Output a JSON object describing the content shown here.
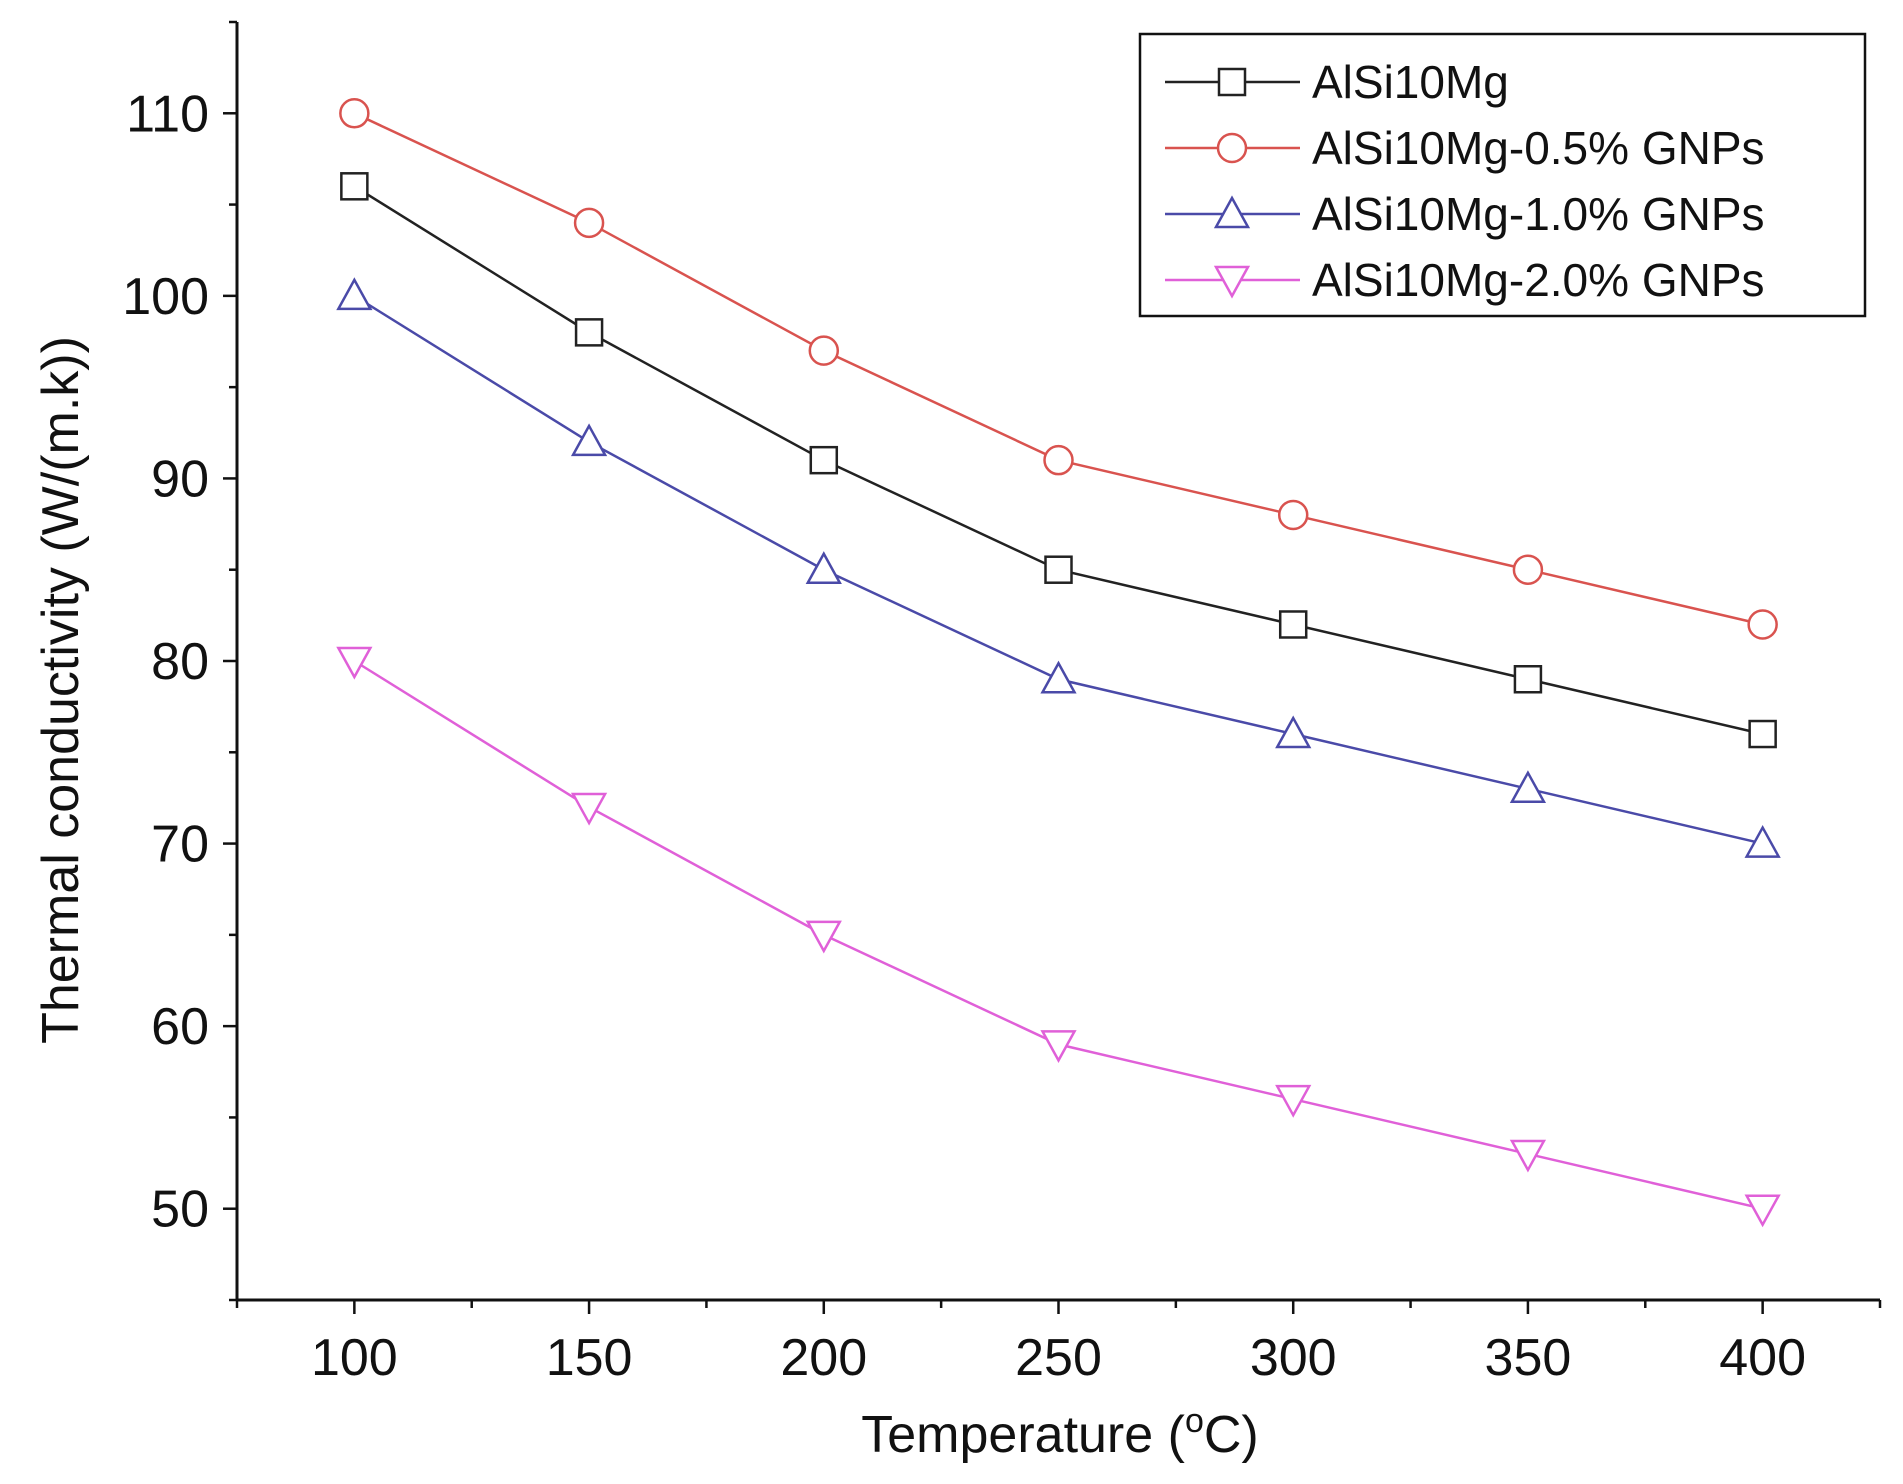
{
  "chart_data": {
    "type": "line",
    "title": "",
    "xlabel": "Temperature (",
    "xlabel_superscript": "o",
    "xlabel_suffix": "C)",
    "ylabel": "Thermal conductivity (W/(m.k))",
    "x": [
      100,
      150,
      200,
      250,
      300,
      350,
      400
    ],
    "xlim": [
      75,
      425
    ],
    "ylim": [
      45,
      115
    ],
    "xticks": [
      100,
      150,
      200,
      250,
      300,
      350,
      400
    ],
    "yticks": [
      50,
      60,
      70,
      80,
      90,
      100,
      110
    ],
    "legend_position": "top-right",
    "series": [
      {
        "name": "AlSi10Mg",
        "values": [
          106,
          98,
          91,
          85,
          82,
          79,
          76
        ],
        "color": "#222222",
        "marker": "square"
      },
      {
        "name": "AlSi10Mg-0.5% GNPs",
        "values": [
          110,
          104,
          97,
          91,
          88,
          85,
          82
        ],
        "color": "#d9534f",
        "marker": "circle"
      },
      {
        "name": "AlSi10Mg-1.0% GNPs",
        "values": [
          100,
          92,
          85,
          79,
          76,
          73,
          70
        ],
        "color": "#4a4aa8",
        "marker": "triangle-up"
      },
      {
        "name": "AlSi10Mg-2.0% GNPs",
        "values": [
          80,
          72,
          65,
          59,
          56,
          53,
          50
        ],
        "color": "#e060d8",
        "marker": "triangle-down"
      }
    ]
  }
}
